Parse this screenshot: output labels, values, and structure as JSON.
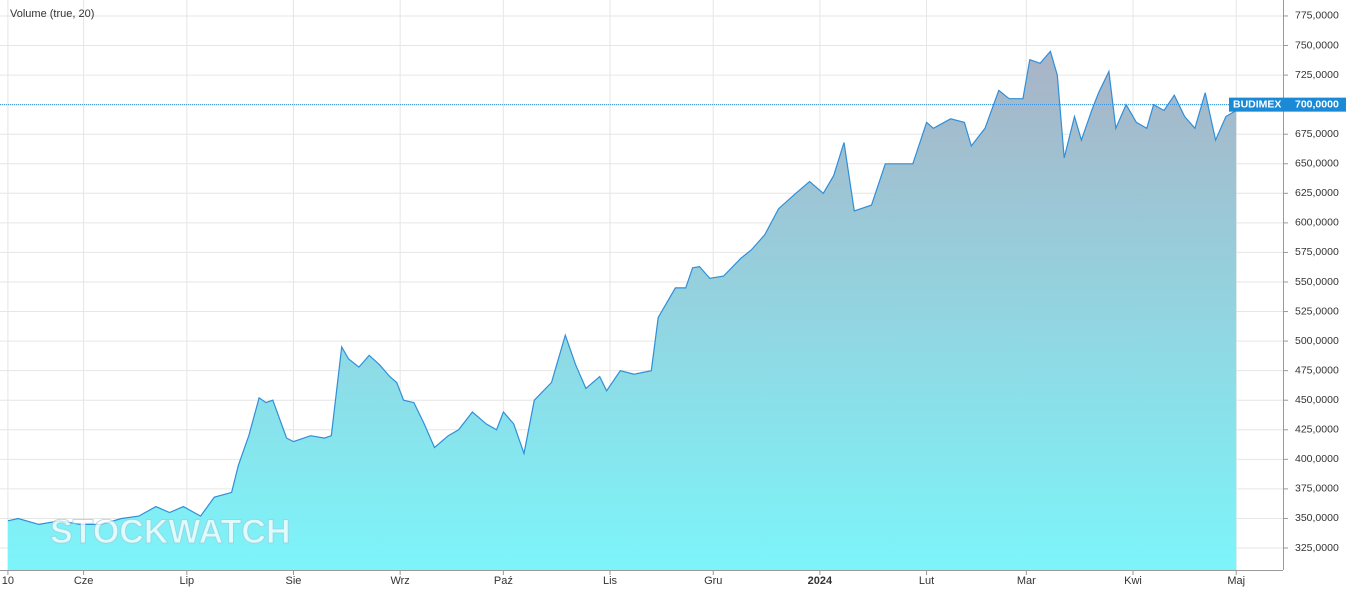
{
  "chart_data": {
    "type": "area",
    "title": "Volume (true, 20)",
    "watermark": "STOCKWATCH",
    "series": [
      {
        "name": "BUDIMEX",
        "color": "#2f8fd8",
        "x": [
          0,
          3,
          9,
          15,
          21,
          27,
          33,
          38,
          43,
          47,
          51,
          56,
          60,
          65,
          67,
          70,
          73,
          75,
          77,
          81,
          83,
          88,
          92,
          94,
          97,
          99,
          102,
          105,
          108,
          111,
          113,
          115,
          118,
          121,
          124,
          128,
          131,
          135,
          139,
          142,
          144,
          147,
          150,
          153,
          158,
          162,
          165,
          168,
          172,
          174,
          178,
          182,
          187,
          189,
          194,
          197,
          199,
          201,
          204,
          208,
          213,
          216,
          220,
          224,
          229,
          233,
          237,
          240,
          243,
          246,
          251,
          255,
          259,
          263,
          267,
          269,
          274,
          278,
          280,
          284,
          288,
          291,
          295,
          297,
          300,
          303,
          305,
          307,
          310,
          312,
          315,
          317,
          320,
          322,
          325,
          328,
          331,
          333,
          336,
          339,
          342,
          345,
          348,
          351,
          354,
          357
        ],
        "values": [
          348,
          350,
          345,
          348,
          345,
          345,
          350,
          352,
          360,
          355,
          360,
          352,
          368,
          372,
          395,
          420,
          452,
          448,
          450,
          418,
          415,
          420,
          418,
          420,
          495,
          485,
          478,
          488,
          480,
          470,
          465,
          450,
          448,
          430,
          410,
          420,
          425,
          440,
          430,
          425,
          440,
          430,
          405,
          450,
          465,
          505,
          480,
          460,
          470,
          458,
          475,
          472,
          475,
          520,
          545,
          545,
          562,
          563,
          553,
          555,
          570,
          577,
          590,
          612,
          625,
          635,
          625,
          640,
          668,
          610,
          615,
          650,
          650,
          650,
          685,
          680,
          688,
          685,
          665,
          680,
          712,
          705,
          705,
          738,
          735,
          745,
          725,
          655,
          690,
          670,
          695,
          710,
          728,
          680,
          700,
          685,
          680,
          700,
          695,
          708,
          690,
          680,
          710,
          670,
          690,
          695
        ]
      }
    ],
    "price_marker": {
      "name": "BUDIMEX",
      "value": 700,
      "label": "700,0000"
    },
    "xlim": [
      -2.3,
      370.6
    ],
    "xticks": [
      {
        "value": 0,
        "label": "10"
      },
      {
        "value": 22,
        "label": "Cze"
      },
      {
        "value": 52,
        "label": "Lip"
      },
      {
        "value": 83,
        "label": "Sie"
      },
      {
        "value": 114,
        "label": "Wrz"
      },
      {
        "value": 144,
        "label": "Paź"
      },
      {
        "value": 175,
        "label": "Lis"
      },
      {
        "value": 205,
        "label": "Gru"
      },
      {
        "value": 236,
        "label": "2024"
      },
      {
        "value": 267,
        "label": "Lut"
      },
      {
        "value": 296,
        "label": "Mar"
      },
      {
        "value": 327,
        "label": "Kwi"
      },
      {
        "value": 357,
        "label": "Maj"
      }
    ],
    "ylim": [
      306.4,
      788.5
    ],
    "yticks": [
      {
        "value": 325,
        "label": "325,0000"
      },
      {
        "value": 350,
        "label": "350,0000"
      },
      {
        "value": 375,
        "label": "375,0000"
      },
      {
        "value": 400,
        "label": "400,0000"
      },
      {
        "value": 425,
        "label": "425,0000"
      },
      {
        "value": 450,
        "label": "450,0000"
      },
      {
        "value": 475,
        "label": "475,0000"
      },
      {
        "value": 500,
        "label": "500,0000"
      },
      {
        "value": 525,
        "label": "525,0000"
      },
      {
        "value": 550,
        "label": "550,0000"
      },
      {
        "value": 575,
        "label": "575,0000"
      },
      {
        "value": 600,
        "label": "600,0000"
      },
      {
        "value": 625,
        "label": "625,0000"
      },
      {
        "value": 650,
        "label": "650,0000"
      },
      {
        "value": 675,
        "label": "675,0000"
      },
      {
        "value": 700,
        "label": "700,0000"
      },
      {
        "value": 725,
        "label": "725,0000"
      },
      {
        "value": 750,
        "label": "750,0000"
      },
      {
        "value": 775,
        "label": "775,0000"
      }
    ],
    "grid": true
  }
}
